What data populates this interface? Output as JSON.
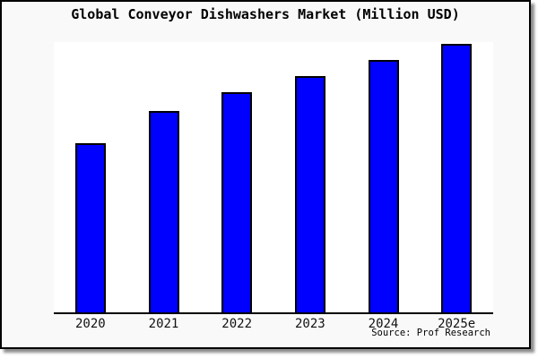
{
  "chart": {
    "title": "Global Conveyor Dishwashers Market (Million USD)",
    "source_note": "Source: Prof Research",
    "colors": {
      "bar_fill": "#0000ff",
      "bar_border": "#000000",
      "frame_background": "#f9f9f9",
      "plot_background": "#ffffff",
      "axis_line": "#000000",
      "title_text": "#000000",
      "tick_text": "#111111",
      "drop_shadow": "#8c8c8c"
    }
  },
  "chart_data": {
    "type": "bar",
    "title": "Global Conveyor Dishwashers Market (Million USD)",
    "categories": [
      "2020",
      "2021",
      "2022",
      "2023",
      "2024",
      "2025e"
    ],
    "values": [
      63,
      75,
      82,
      88,
      94,
      100
    ],
    "units": "relative bar height, tallest bar (2025e) = 100; y-axis has no ticks or labels in the image",
    "xlabel": "",
    "ylabel": "",
    "ylim": [
      0,
      100
    ],
    "legend": false,
    "gridlines": false,
    "series_color": "#0000ff",
    "annotation": "Source: Prof Research"
  }
}
